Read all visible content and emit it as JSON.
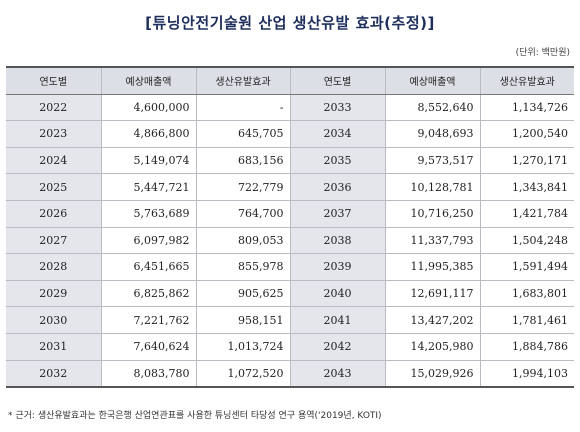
{
  "title": "[튜닝안전기술원 산업 생산유발 효과(추정)]",
  "unit": "(단위: 백만원)",
  "headers": [
    "연도별",
    "예상매출액",
    "생산유발효과",
    "연도별",
    "예상매출액",
    "생산유발효과"
  ],
  "rows": [
    {
      "y1": "2022",
      "s1": "4,600,000",
      "p1": "-",
      "y2": "2033",
      "s2": "8,552,640",
      "p2": "1,134,726"
    },
    {
      "y1": "2023",
      "s1": "4,866,800",
      "p1": "645,705",
      "y2": "2034",
      "s2": "9,048,693",
      "p2": "1,200,540"
    },
    {
      "y1": "2024",
      "s1": "5,149,074",
      "p1": "683,156",
      "y2": "2035",
      "s2": "9,573,517",
      "p2": "1,270,171"
    },
    {
      "y1": "2025",
      "s1": "5,447,721",
      "p1": "722,779",
      "y2": "2036",
      "s2": "10,128,781",
      "p2": "1,343,841"
    },
    {
      "y1": "2026",
      "s1": "5,763,689",
      "p1": "764,700",
      "y2": "2037",
      "s2": "10,716,250",
      "p2": "1,421,784"
    },
    {
      "y1": "2027",
      "s1": "6,097,982",
      "p1": "809,053",
      "y2": "2038",
      "s2": "11,337,793",
      "p2": "1,504,248"
    },
    {
      "y1": "2028",
      "s1": "6,451,665",
      "p1": "855,978",
      "y2": "2039",
      "s2": "11,995,385",
      "p2": "1,591,494"
    },
    {
      "y1": "2029",
      "s1": "6,825,862",
      "p1": "905,625",
      "y2": "2040",
      "s2": "12,691,117",
      "p2": "1,683,801"
    },
    {
      "y1": "2030",
      "s1": "7,221,762",
      "p1": "958,151",
      "y2": "2041",
      "s2": "13,427,202",
      "p2": "1,781,461"
    },
    {
      "y1": "2031",
      "s1": "7,640,624",
      "p1": "1,013,724",
      "y2": "2042",
      "s2": "14,205,980",
      "p2": "1,884,786"
    },
    {
      "y1": "2032",
      "s1": "8,083,780",
      "p1": "1,072,520",
      "y2": "2043",
      "s2": "15,029,926",
      "p2": "1,994,103"
    }
  ],
  "footnote": "* 근거: 생산유발효과는 한국은행 산업연관표를 사용한 튜닝센터 타당성 연구 용역('2019년, KOTI)"
}
